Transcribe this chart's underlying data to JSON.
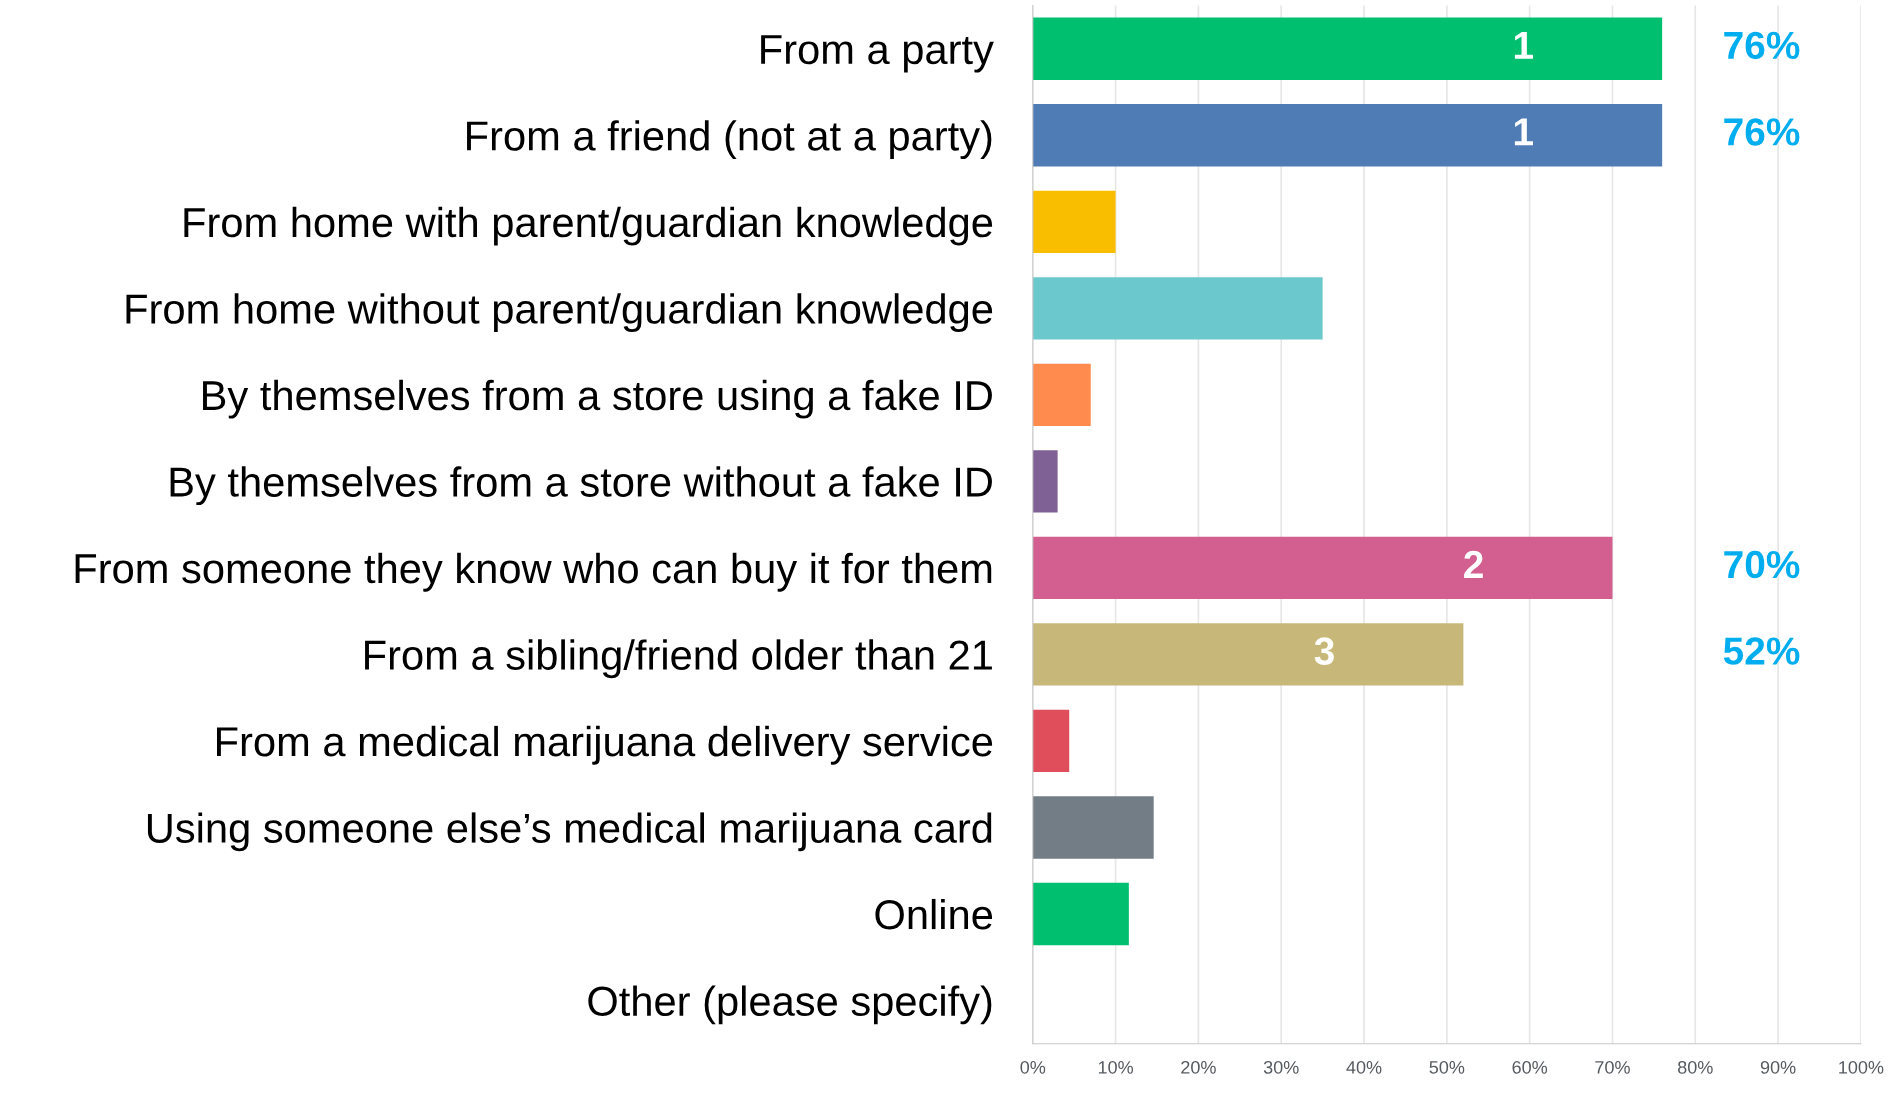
{
  "chart_data": {
    "type": "bar",
    "orientation": "horizontal",
    "categories": [
      "From a party",
      "From a friend (not at a party)",
      "From home with parent/guardian knowledge",
      "From home without parent/guardian knowledge",
      "By themselves from a store using a fake ID",
      "By themselves from a store without a fake ID",
      "From someone they know who can buy it for them",
      "From a sibling/friend older than 21",
      "From a medical marijuana delivery service",
      "Using someone else’s medical marijuana card",
      "Online",
      "Other (please specify)"
    ],
    "values": [
      76,
      76,
      10,
      35,
      7,
      3,
      70,
      52,
      4.4,
      14.6,
      11.6,
      0
    ],
    "colors": [
      "#00bf6f",
      "#507cb6",
      "#f9be00",
      "#6bc8cd",
      "#ff8b4f",
      "#7f6195",
      "#d25f90",
      "#c7b879",
      "#e04e5c",
      "#737d86",
      "#00bf6f",
      "#00bf6f"
    ],
    "value_labels": [
      "76%",
      "76%",
      null,
      null,
      null,
      null,
      "70%",
      "52%",
      null,
      null,
      null,
      null
    ],
    "annotations": [
      "1",
      "1",
      "2",
      "3"
    ],
    "xlim": [
      0,
      100
    ],
    "xticks": [
      {
        "value": 0,
        "label": "0%"
      },
      {
        "value": 10,
        "label": "10%"
      },
      {
        "value": 20,
        "label": "20%"
      },
      {
        "value": 30,
        "label": "30%"
      },
      {
        "value": 40,
        "label": "40%"
      },
      {
        "value": 50,
        "label": "50%"
      },
      {
        "value": 60,
        "label": "60%"
      },
      {
        "value": 70,
        "label": "70%"
      },
      {
        "value": 80,
        "label": "80%"
      },
      {
        "value": 90,
        "label": "90%"
      },
      {
        "value": 100,
        "label": "100%"
      }
    ],
    "grid": "x"
  }
}
